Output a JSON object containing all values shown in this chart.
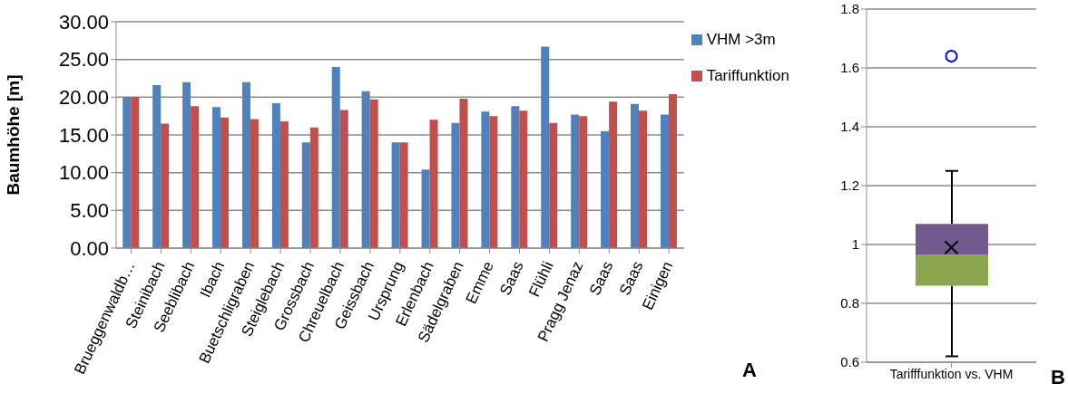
{
  "chart_data": [
    {
      "type": "bar",
      "ylabel": "Baumhöhe [m]",
      "categories": [
        "Brueggenwaldb…",
        "Steinibach",
        "Seeblibach",
        "Ibach",
        "Buetschligraben",
        "Steiglebach",
        "Grossbach",
        "Chreuelbach",
        "Geissbach",
        "Ursprung",
        "Erlenbach",
        "Sädelgraben",
        "Emme",
        "Saas",
        "Flühli",
        "Pragg Jenaz",
        "Saas",
        "Saas",
        "Einigen"
      ],
      "series": [
        {
          "name": "VHM >3m",
          "color": "#4f81bd",
          "values": [
            20.0,
            21.6,
            22.0,
            18.7,
            22.0,
            19.2,
            14.0,
            24.0,
            20.8,
            14.0,
            10.4,
            16.6,
            18.1,
            18.8,
            26.7,
            17.7,
            15.5,
            19.1,
            17.7
          ]
        },
        {
          "name": "Tariffunktion",
          "color": "#c0504d",
          "values": [
            20.0,
            16.5,
            18.8,
            17.3,
            17.1,
            16.8,
            16.0,
            18.3,
            19.7,
            14.0,
            17.0,
            19.8,
            17.5,
            18.2,
            16.6,
            17.5,
            19.4,
            18.2,
            20.4
          ]
        }
      ],
      "ylim": [
        0,
        30
      ],
      "yticks": [
        {
          "value": 0,
          "label": "0.00"
        },
        {
          "value": 5,
          "label": "5.00"
        },
        {
          "value": 10,
          "label": "10.00"
        },
        {
          "value": 15,
          "label": "15.00"
        },
        {
          "value": 20,
          "label": "20.00"
        },
        {
          "value": 25,
          "label": "25.00"
        },
        {
          "value": 30,
          "label": "30.00"
        }
      ],
      "grid": "y",
      "legend": "top right",
      "annotations": [
        "A"
      ]
    },
    {
      "type": "box",
      "categories": [
        "Tarifffunktion vs. VHM"
      ],
      "boxes": [
        {
          "low": 0.62,
          "q1": 0.86,
          "median": 0.965,
          "q3": 1.07,
          "high": 1.25,
          "mean": 0.99,
          "outliers": [
            1.64
          ]
        }
      ],
      "color": "#8aa64e",
      "ylim": [
        0.6,
        1.8
      ],
      "yticks": [
        0.6,
        0.8,
        1,
        1.2,
        1.4,
        1.6,
        1.8
      ],
      "grid": "y",
      "annotations": [
        "B"
      ]
    }
  ]
}
